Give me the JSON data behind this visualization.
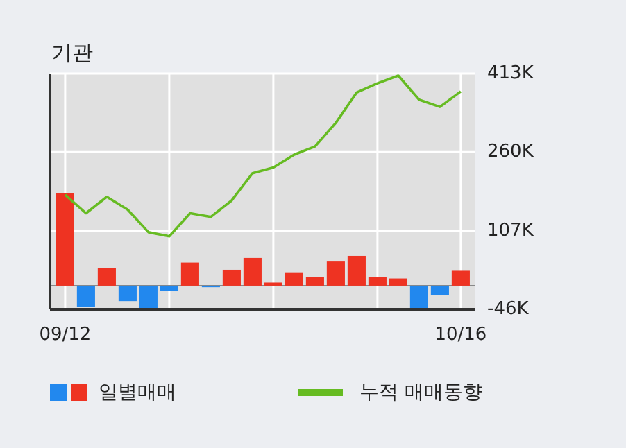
{
  "chart_data": {
    "type": "bar",
    "title": "기관",
    "categories": [
      "09/12",
      null,
      null,
      null,
      null,
      null,
      null,
      null,
      null,
      null,
      null,
      null,
      null,
      null,
      null,
      null,
      null,
      null,
      null,
      "10/16"
    ],
    "series": [
      {
        "name": "일별매매",
        "values": [
          180,
          -41,
          34,
          -30,
          -46,
          -10,
          45,
          -3,
          31,
          54,
          6,
          26,
          17,
          47,
          58,
          17,
          14,
          -46,
          -19,
          29
        ],
        "colors": [
          "#ee3322",
          "#2288ee",
          "#ee3322",
          "#2288ee",
          "#2288ee",
          "#2288ee",
          "#ee3322",
          "#2288ee",
          "#ee3322",
          "#ee3322",
          "#ee3322",
          "#ee3322",
          "#ee3322",
          "#ee3322",
          "#ee3322",
          "#ee3322",
          "#ee3322",
          "#2288ee",
          "#2288ee",
          "#ee3322"
        ]
      },
      {
        "name": "누적 매매동향",
        "type": "line",
        "color": "#66bb22",
        "values": [
          177,
          141,
          173,
          148,
          104,
          96,
          141,
          134,
          166,
          219,
          230,
          255,
          271,
          317,
          376,
          394,
          409,
          362,
          348,
          378
        ]
      }
    ],
    "ylim": [
      -46,
      413
    ],
    "yticks": [
      {
        "value": -46,
        "label": "-46K"
      },
      {
        "value": 107,
        "label": "107K"
      },
      {
        "value": 260,
        "label": "260K"
      },
      {
        "value": 413,
        "label": "413K"
      }
    ],
    "grid": true,
    "legend": "bottom",
    "marker": "none"
  }
}
